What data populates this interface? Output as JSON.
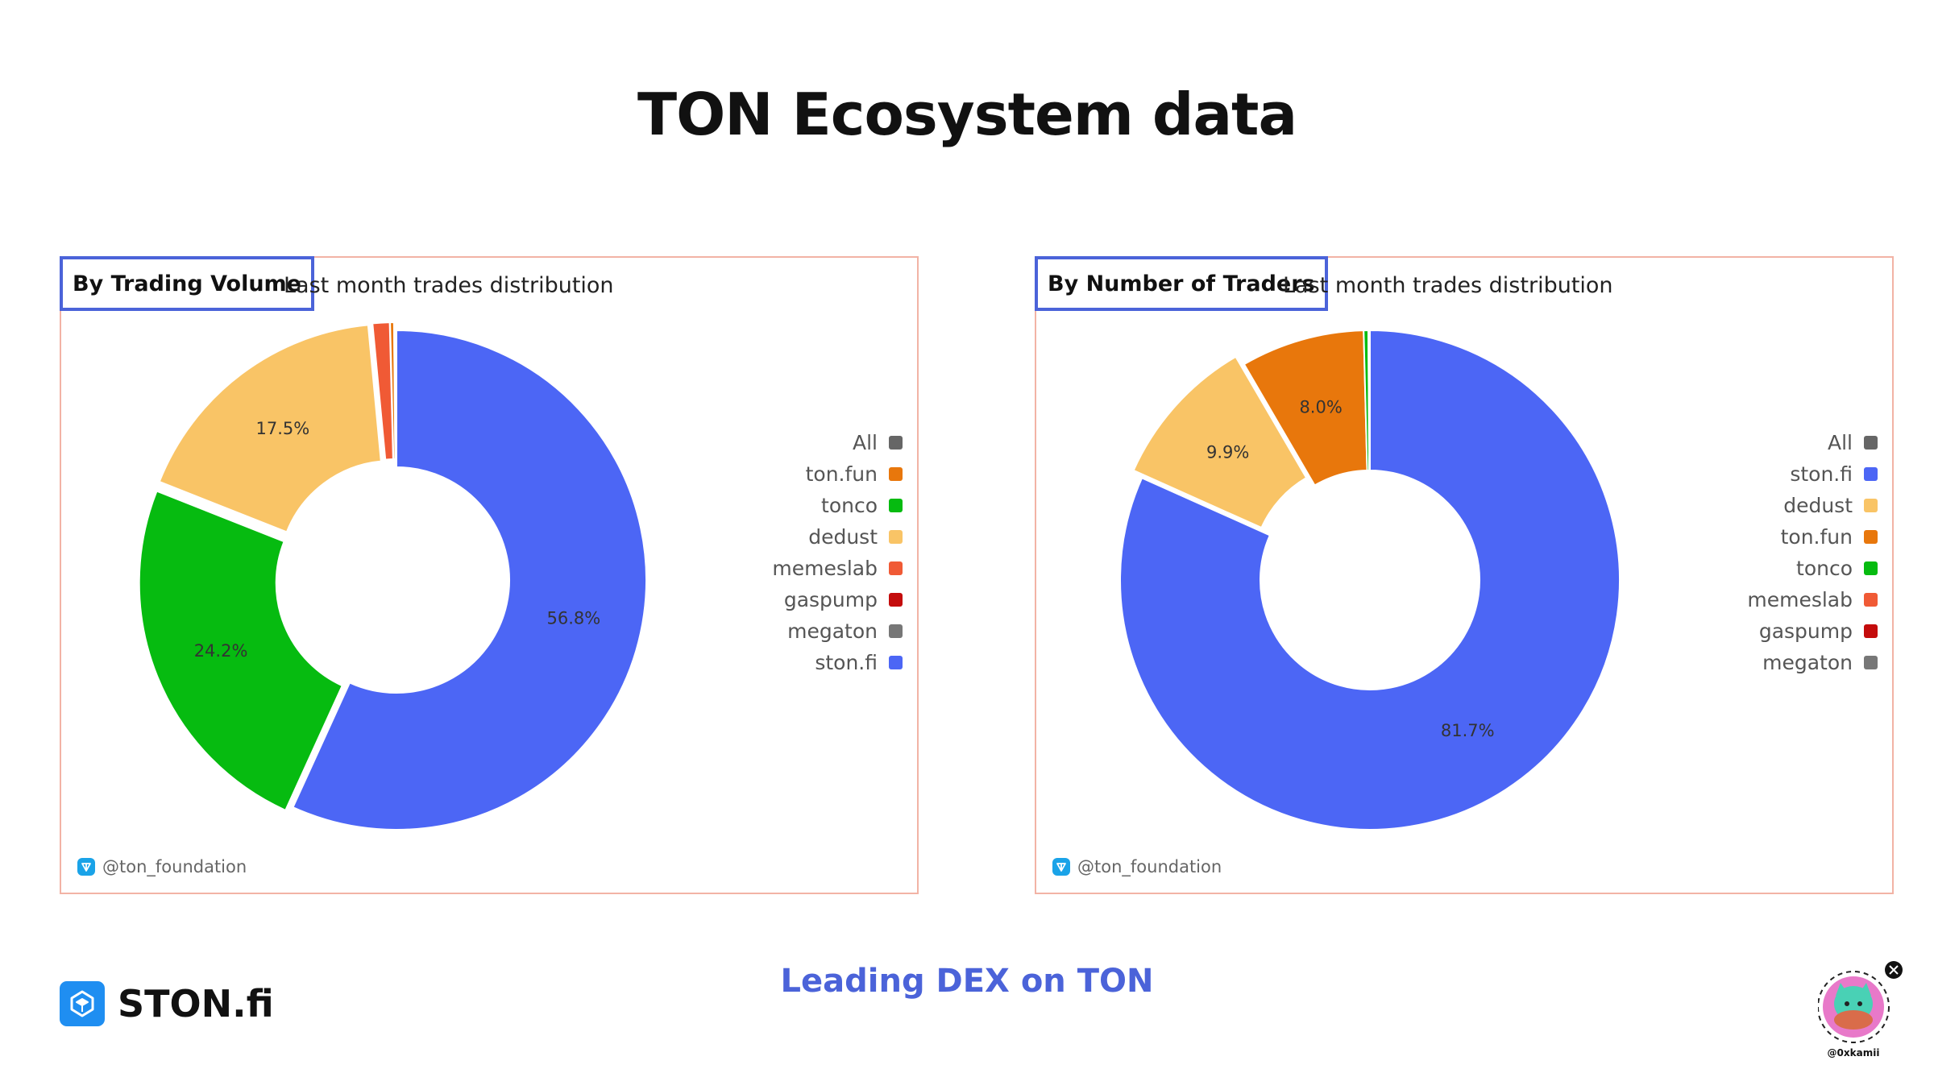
{
  "title": "TON Ecosystem data",
  "tagline": "Leading DEX on TON",
  "brand": {
    "name": "STON.fi"
  },
  "avatar": {
    "handle": "@0xkamii"
  },
  "chart_data": [
    {
      "type": "pie",
      "variant": "donut",
      "tag": "By Trading Volume",
      "subtitle": "Last month trades distribution",
      "credit": "@ton_foundation",
      "legend": [
        {
          "name": "All",
          "color": "#666666"
        },
        {
          "name": "ton.fun",
          "color": "#e8770c"
        },
        {
          "name": "tonco",
          "color": "#06bb10"
        },
        {
          "name": "dedust",
          "color": "#f9c466"
        },
        {
          "name": "memeslab",
          "color": "#f05a35"
        },
        {
          "name": "gaspump",
          "color": "#c40c0c"
        },
        {
          "name": "megaton",
          "color": "#777777"
        },
        {
          "name": "ston.fi",
          "color": "#4c66f5"
        }
      ],
      "slices": [
        {
          "name": "ston.fi",
          "value": 56.8,
          "color": "#4c66f5",
          "label": "56.8%"
        },
        {
          "name": "tonco",
          "value": 24.2,
          "color": "#06bb10",
          "label": "24.2%"
        },
        {
          "name": "dedust",
          "value": 17.5,
          "color": "#f9c466",
          "label": "17.5%"
        },
        {
          "name": "memeslab",
          "value": 1.1,
          "color": "#f05a35",
          "label": ""
        },
        {
          "name": "ton.fun",
          "value": 0.25,
          "color": "#e8770c",
          "label": ""
        },
        {
          "name": "gaspump",
          "value": 0.1,
          "color": "#c40c0c",
          "label": ""
        },
        {
          "name": "megaton",
          "value": 0.05,
          "color": "#777777",
          "label": ""
        }
      ]
    },
    {
      "type": "pie",
      "variant": "donut",
      "tag": "By Number of Traders",
      "subtitle": "Last month trades distribution",
      "credit": "@ton_foundation",
      "legend": [
        {
          "name": "All",
          "color": "#666666"
        },
        {
          "name": "ston.fi",
          "color": "#4c66f5"
        },
        {
          "name": "dedust",
          "color": "#f9c466"
        },
        {
          "name": "ton.fun",
          "color": "#e8770c"
        },
        {
          "name": "tonco",
          "color": "#06bb10"
        },
        {
          "name": "memeslab",
          "color": "#f05a35"
        },
        {
          "name": "gaspump",
          "color": "#c40c0c"
        },
        {
          "name": "megaton",
          "color": "#777777"
        }
      ],
      "slices": [
        {
          "name": "ston.fi",
          "value": 81.7,
          "color": "#4c66f5",
          "label": "81.7%"
        },
        {
          "name": "dedust",
          "value": 9.9,
          "color": "#f9c466",
          "label": "9.9%"
        },
        {
          "name": "ton.fun",
          "value": 8.0,
          "color": "#e8770c",
          "label": "8.0%"
        },
        {
          "name": "tonco",
          "value": 0.3,
          "color": "#06bb10",
          "label": ""
        },
        {
          "name": "memeslab",
          "value": 0.05,
          "color": "#f05a35",
          "label": ""
        },
        {
          "name": "megaton",
          "value": 0.05,
          "color": "#777777",
          "label": ""
        }
      ]
    }
  ]
}
